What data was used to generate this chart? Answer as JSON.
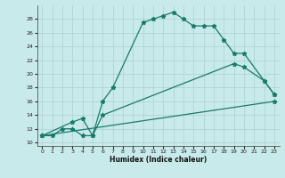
{
  "xlabel": "Humidex (Indice chaleur)",
  "xlim": [
    -0.5,
    23.5
  ],
  "ylim": [
    9.5,
    30.0
  ],
  "yticks": [
    10,
    12,
    14,
    16,
    18,
    20,
    22,
    24,
    26,
    28
  ],
  "xticks": [
    0,
    1,
    2,
    3,
    4,
    5,
    6,
    7,
    8,
    9,
    10,
    11,
    12,
    13,
    14,
    15,
    16,
    17,
    18,
    19,
    20,
    21,
    22,
    23
  ],
  "bg_color": "#c8eaea",
  "line_color": "#1a7a6a",
  "grid_color": "#b0d4d4",
  "line1_x": [
    0,
    1,
    2,
    3,
    4,
    5,
    6,
    7,
    10,
    11,
    12,
    13,
    14,
    15,
    16,
    17,
    18,
    19,
    20,
    22,
    23
  ],
  "line1_y": [
    11,
    11,
    12,
    12,
    11,
    11,
    16,
    18,
    27.5,
    28,
    28.5,
    29,
    28,
    27,
    27,
    27,
    25,
    23,
    23,
    19,
    17
  ],
  "line2_x": [
    0,
    3,
    4,
    5,
    6,
    19,
    20,
    22,
    23
  ],
  "line2_y": [
    11,
    13,
    13.5,
    11,
    14,
    21.5,
    21,
    19,
    17
  ],
  "line3_x": [
    0,
    23
  ],
  "line3_y": [
    11,
    16
  ]
}
